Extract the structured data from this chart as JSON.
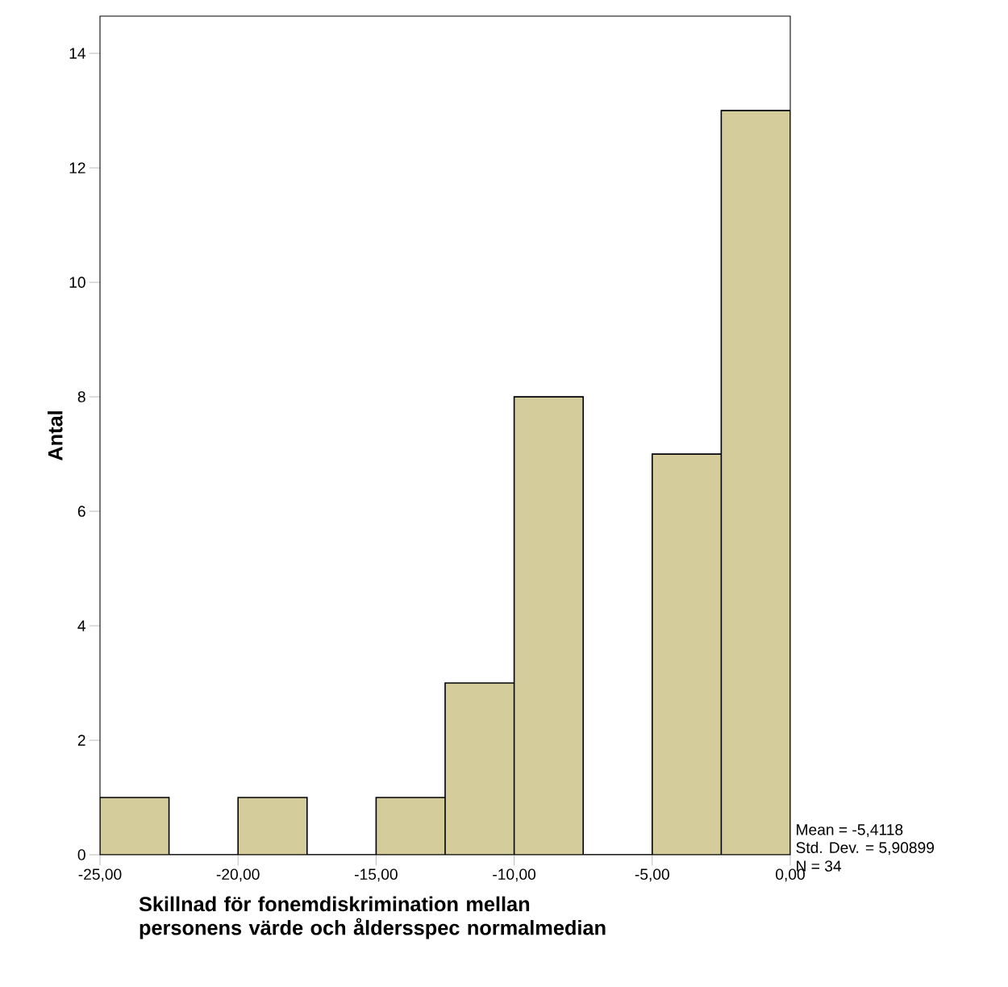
{
  "chart_data": {
    "type": "histogram",
    "xlabel": "Skillnad för fonemdiskrimination mellan personens värde och åldersspec normalmedian",
    "ylabel": "Antal",
    "bins": [
      -25,
      -22.5,
      -20,
      -17.5,
      -15,
      -12.5,
      -10,
      -7.5,
      -5,
      -2.5,
      0
    ],
    "values": [
      1,
      0,
      1,
      0,
      1,
      3,
      8,
      0,
      7,
      13
    ],
    "color": "#d4cc9a",
    "xlim": [
      -25,
      0
    ],
    "ylim": [
      0,
      14.65
    ],
    "xticks": [
      {
        "value": -25,
        "label": "-25,00"
      },
      {
        "value": -20,
        "label": "-20,00"
      },
      {
        "value": -15,
        "label": "-15,00"
      },
      {
        "value": -10,
        "label": "-10,00"
      },
      {
        "value": -5,
        "label": "-5,00"
      },
      {
        "value": 0,
        "label": "0,00"
      }
    ],
    "yticks": [
      0,
      2,
      4,
      6,
      8,
      10,
      12,
      14
    ],
    "annotations": [
      "Mean = -5,4118",
      "Std. Dev. = 5,90899",
      "N = 34"
    ]
  }
}
